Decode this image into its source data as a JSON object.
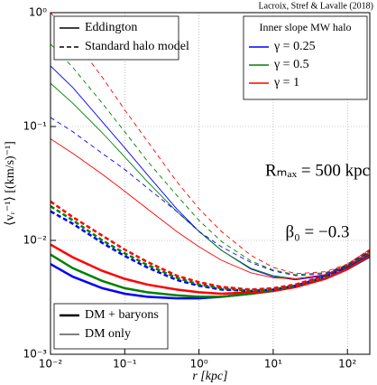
{
  "chart_data": {
    "type": "line",
    "credit": "Lacroix, Stref & Lavalle (2018)",
    "x_label": "r [kpc]",
    "y_label": "⟨vᵣ⁻¹⟩ [(km/s)⁻¹]",
    "annotations": [
      "Rₘₐₓ = 500 kpc",
      "β₀ = −0.3"
    ],
    "log_x": true,
    "log_y": true,
    "grid": true,
    "xlim": [
      0.01,
      200
    ],
    "ylim": [
      0.001,
      1
    ],
    "xticks": [
      {
        "value": 0.01,
        "label": "10⁻²"
      },
      {
        "value": 0.1,
        "label": "10⁻¹"
      },
      {
        "value": 1,
        "label": "10⁰"
      },
      {
        "value": 10,
        "label": "10¹"
      },
      {
        "value": 100,
        "label": "10²"
      }
    ],
    "yticks": [
      {
        "value": 0.001,
        "label": "10⁻³"
      },
      {
        "value": 0.01,
        "label": "10⁻²"
      },
      {
        "value": 0.1,
        "label": "10⁻¹"
      },
      {
        "value": 1,
        "label": "10⁰"
      }
    ],
    "x": [
      0.01,
      0.02,
      0.05,
      0.1,
      0.2,
      0.5,
      1,
      2,
      5,
      10,
      20,
      50,
      100,
      200
    ],
    "series": [
      {
        "color": "#0000ff",
        "dash": false,
        "linewidth": 2.5,
        "values": [
          0.0062,
          0.0048,
          0.0038,
          0.0034,
          0.0032,
          0.0031,
          0.0031,
          0.0032,
          0.0034,
          0.0036,
          0.0039,
          0.0046,
          0.0056,
          0.0072
        ]
      },
      {
        "color": "#008000",
        "dash": false,
        "linewidth": 2.5,
        "values": [
          0.0075,
          0.0057,
          0.0044,
          0.0038,
          0.0035,
          0.0033,
          0.0032,
          0.0032,
          0.0034,
          0.0036,
          0.0039,
          0.0046,
          0.0056,
          0.0073
        ]
      },
      {
        "color": "#ff0000",
        "dash": false,
        "linewidth": 2.5,
        "values": [
          0.0092,
          0.0071,
          0.0054,
          0.0046,
          0.0041,
          0.0037,
          0.0035,
          0.0034,
          0.0035,
          0.0036,
          0.0039,
          0.0046,
          0.0056,
          0.0074
        ]
      },
      {
        "color": "#0000ff",
        "dash": true,
        "linewidth": 2.5,
        "values": [
          0.018,
          0.014,
          0.0095,
          0.0073,
          0.0058,
          0.0045,
          0.004,
          0.0037,
          0.0036,
          0.0037,
          0.004,
          0.0048,
          0.0059,
          0.0078
        ]
      },
      {
        "color": "#008000",
        "dash": true,
        "linewidth": 2.5,
        "values": [
          0.02,
          0.015,
          0.01,
          0.0077,
          0.0061,
          0.0047,
          0.0041,
          0.0038,
          0.0036,
          0.0037,
          0.004,
          0.0048,
          0.006,
          0.008
        ]
      },
      {
        "color": "#ff0000",
        "dash": true,
        "linewidth": 2.5,
        "values": [
          0.022,
          0.016,
          0.011,
          0.0083,
          0.0065,
          0.0049,
          0.0043,
          0.0039,
          0.0037,
          0.0038,
          0.0041,
          0.0049,
          0.0061,
          0.0082
        ]
      },
      {
        "color": "#0000ff",
        "dash": false,
        "linewidth": 0.9,
        "values": [
          0.34,
          0.22,
          0.11,
          0.065,
          0.038,
          0.019,
          0.012,
          0.0082,
          0.0056,
          0.0048,
          0.0045,
          0.0049,
          0.0058,
          0.0075
        ]
      },
      {
        "color": "#008000",
        "dash": false,
        "linewidth": 0.9,
        "values": [
          0.24,
          0.16,
          0.088,
          0.054,
          0.033,
          0.018,
          0.012,
          0.0082,
          0.0057,
          0.0049,
          0.0046,
          0.005,
          0.0059,
          0.0076
        ]
      },
      {
        "color": "#ff0000",
        "dash": false,
        "linewidth": 0.9,
        "values": [
          0.078,
          0.058,
          0.038,
          0.027,
          0.019,
          0.012,
          0.0088,
          0.0067,
          0.0052,
          0.0047,
          0.0046,
          0.005,
          0.006,
          0.0078
        ]
      },
      {
        "color": "#0000ff",
        "dash": true,
        "linewidth": 0.9,
        "values": [
          0.12,
          0.09,
          0.058,
          0.042,
          0.029,
          0.018,
          0.012,
          0.0088,
          0.0064,
          0.0054,
          0.0049,
          0.0051,
          0.006,
          0.008
        ]
      },
      {
        "color": "#008000",
        "dash": true,
        "linewidth": 0.9,
        "values": [
          0.53,
          0.33,
          0.16,
          0.09,
          0.05,
          0.025,
          0.015,
          0.0098,
          0.0066,
          0.0055,
          0.005,
          0.0052,
          0.0061,
          0.0081
        ]
      },
      {
        "color": "#ff0000",
        "dash": true,
        "linewidth": 0.9,
        "values": [
          1.0,
          0.6,
          0.27,
          0.14,
          0.075,
          0.033,
          0.019,
          0.012,
          0.0074,
          0.0058,
          0.0051,
          0.0053,
          0.0062,
          0.0083
        ]
      }
    ],
    "legends": [
      {
        "entries": [
          {
            "label": "Eddington",
            "dash": false
          },
          {
            "label": "Standard halo model",
            "dash": true
          }
        ]
      },
      {
        "title": "Inner slope MW halo",
        "entries": [
          {
            "label": "γ = 0.25",
            "color": "#0000ff"
          },
          {
            "label": "γ = 0.5",
            "color": "#008000"
          },
          {
            "label": "γ = 1",
            "color": "#ff0000"
          }
        ]
      },
      {
        "entries": [
          {
            "label": "DM + baryons",
            "linewidth": 2.5
          },
          {
            "label": "DM only",
            "linewidth": 0.9
          }
        ]
      }
    ]
  }
}
